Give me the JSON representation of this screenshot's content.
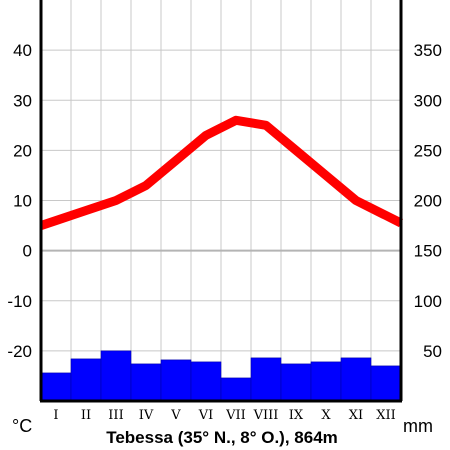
{
  "chart_data": {
    "type": "climate-diagram",
    "title": "Tebessa (35° N., 8° O.), 864m",
    "left_unit": "°C",
    "right_unit": "mm",
    "categories": [
      "I",
      "II",
      "III",
      "IV",
      "V",
      "VI",
      "VII",
      "VIII",
      "IX",
      "X",
      "XI",
      "XII"
    ],
    "temperature": {
      "values": [
        6,
        8,
        10,
        13,
        18,
        23,
        26,
        25,
        20,
        15,
        10,
        7
      ],
      "color": "#ff0000",
      "ylim": [
        -30,
        50
      ],
      "ticks": [
        -20,
        -10,
        0,
        10,
        20,
        30,
        40
      ]
    },
    "precipitation": {
      "values": [
        28,
        42,
        50,
        37,
        41,
        39,
        23,
        43,
        37,
        39,
        43,
        35
      ],
      "color": "#0000ff",
      "ylim": [
        0,
        400
      ],
      "ticks": [
        50,
        100,
        150,
        200,
        250,
        300,
        350
      ]
    },
    "grid": true
  }
}
